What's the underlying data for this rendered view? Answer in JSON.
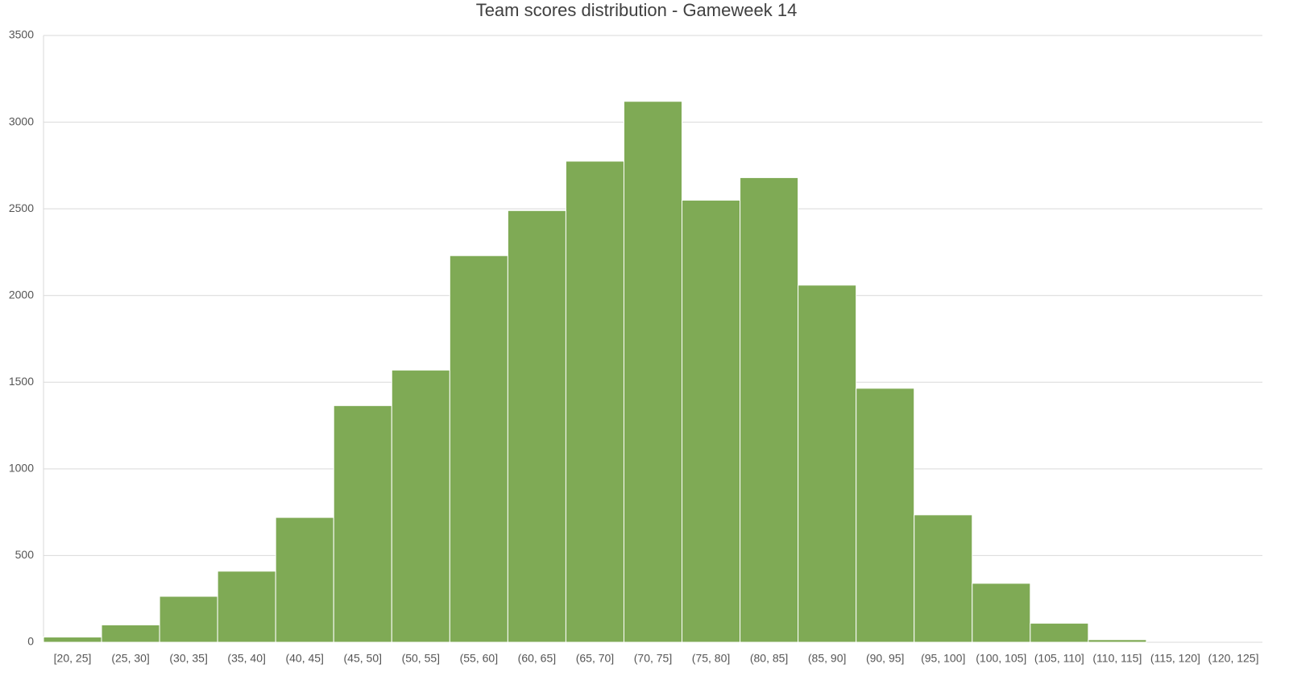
{
  "chart_data": {
    "type": "bar",
    "title": "Team scores distribution - Gameweek 14",
    "categories": [
      "[20, 25]",
      "(25, 30]",
      "(30, 35]",
      "(35, 40]",
      "(40, 45]",
      "(45, 50]",
      "(50, 55]",
      "(55, 60]",
      "(60, 65]",
      "(65, 70]",
      "(70, 75]",
      "(75, 80]",
      "(80, 85]",
      "(85, 90]",
      "(90, 95]",
      "(95, 100]",
      "(100, 105]",
      "(105, 110]",
      "(110, 115]",
      "(115, 120]",
      "(120, 125]"
    ],
    "values": [
      30,
      100,
      265,
      410,
      720,
      1365,
      1570,
      2230,
      2490,
      2775,
      3120,
      2550,
      2680,
      2060,
      1465,
      735,
      340,
      110,
      15,
      0,
      0
    ],
    "color": "#7faa55",
    "ylim": [
      0,
      3500
    ],
    "yticks": [
      0,
      500,
      1000,
      1500,
      2000,
      2500,
      3000,
      3500
    ],
    "grid": true
  }
}
